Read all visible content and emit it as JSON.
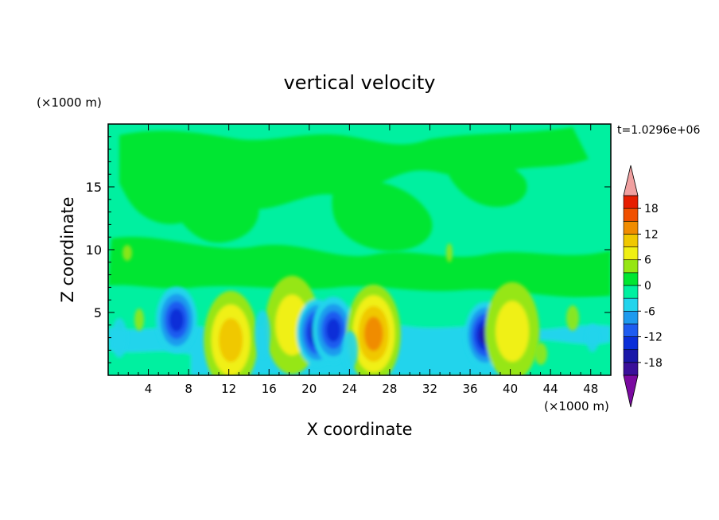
{
  "chart_data": {
    "type": "heatmap",
    "title": "vertical velocity",
    "xlabel": "X coordinate",
    "ylabel": "Z coordinate",
    "x_unit": "(×1000 m)",
    "y_unit": "(×1000 m)",
    "time_label": "t=1.0296e+06",
    "xlim": [
      0,
      50
    ],
    "ylim": [
      0,
      20
    ],
    "x_ticks": [
      4,
      8,
      12,
      16,
      20,
      24,
      28,
      32,
      36,
      40,
      44,
      48
    ],
    "y_ticks": [
      5,
      10,
      15
    ],
    "colorbar": {
      "levels": [
        -21,
        -18,
        -15,
        -12,
        -9,
        -6,
        -3,
        0,
        3,
        6,
        9,
        12,
        15,
        18,
        21
      ],
      "tick_labels": [
        -18,
        -12,
        -6,
        0,
        6,
        12,
        18
      ],
      "colors": [
        "#7a0aa0",
        "#3a109a",
        "#1a18a8",
        "#0a2ed8",
        "#1e5cf0",
        "#1e9aee",
        "#22d4ec",
        "#00f0a0",
        "#00e632",
        "#96e614",
        "#f0f014",
        "#f0c800",
        "#f08c00",
        "#f05000",
        "#e61e00",
        "#f0a0a0"
      ],
      "extend": "both"
    },
    "features": [
      {
        "x": 6.8,
        "z": 4.4,
        "w": -12
      },
      {
        "x": 12.2,
        "z": 2.8,
        "w": 7
      },
      {
        "x": 18.3,
        "z": 4.0,
        "w": 6
      },
      {
        "x": 20.8,
        "z": 3.4,
        "w": -13
      },
      {
        "x": 22.4,
        "z": 3.6,
        "w": -11
      },
      {
        "x": 26.4,
        "z": 3.3,
        "w": 10
      },
      {
        "x": 37.5,
        "z": 3.2,
        "w": -15
      },
      {
        "x": 40.2,
        "z": 3.5,
        "w": 5
      }
    ]
  }
}
